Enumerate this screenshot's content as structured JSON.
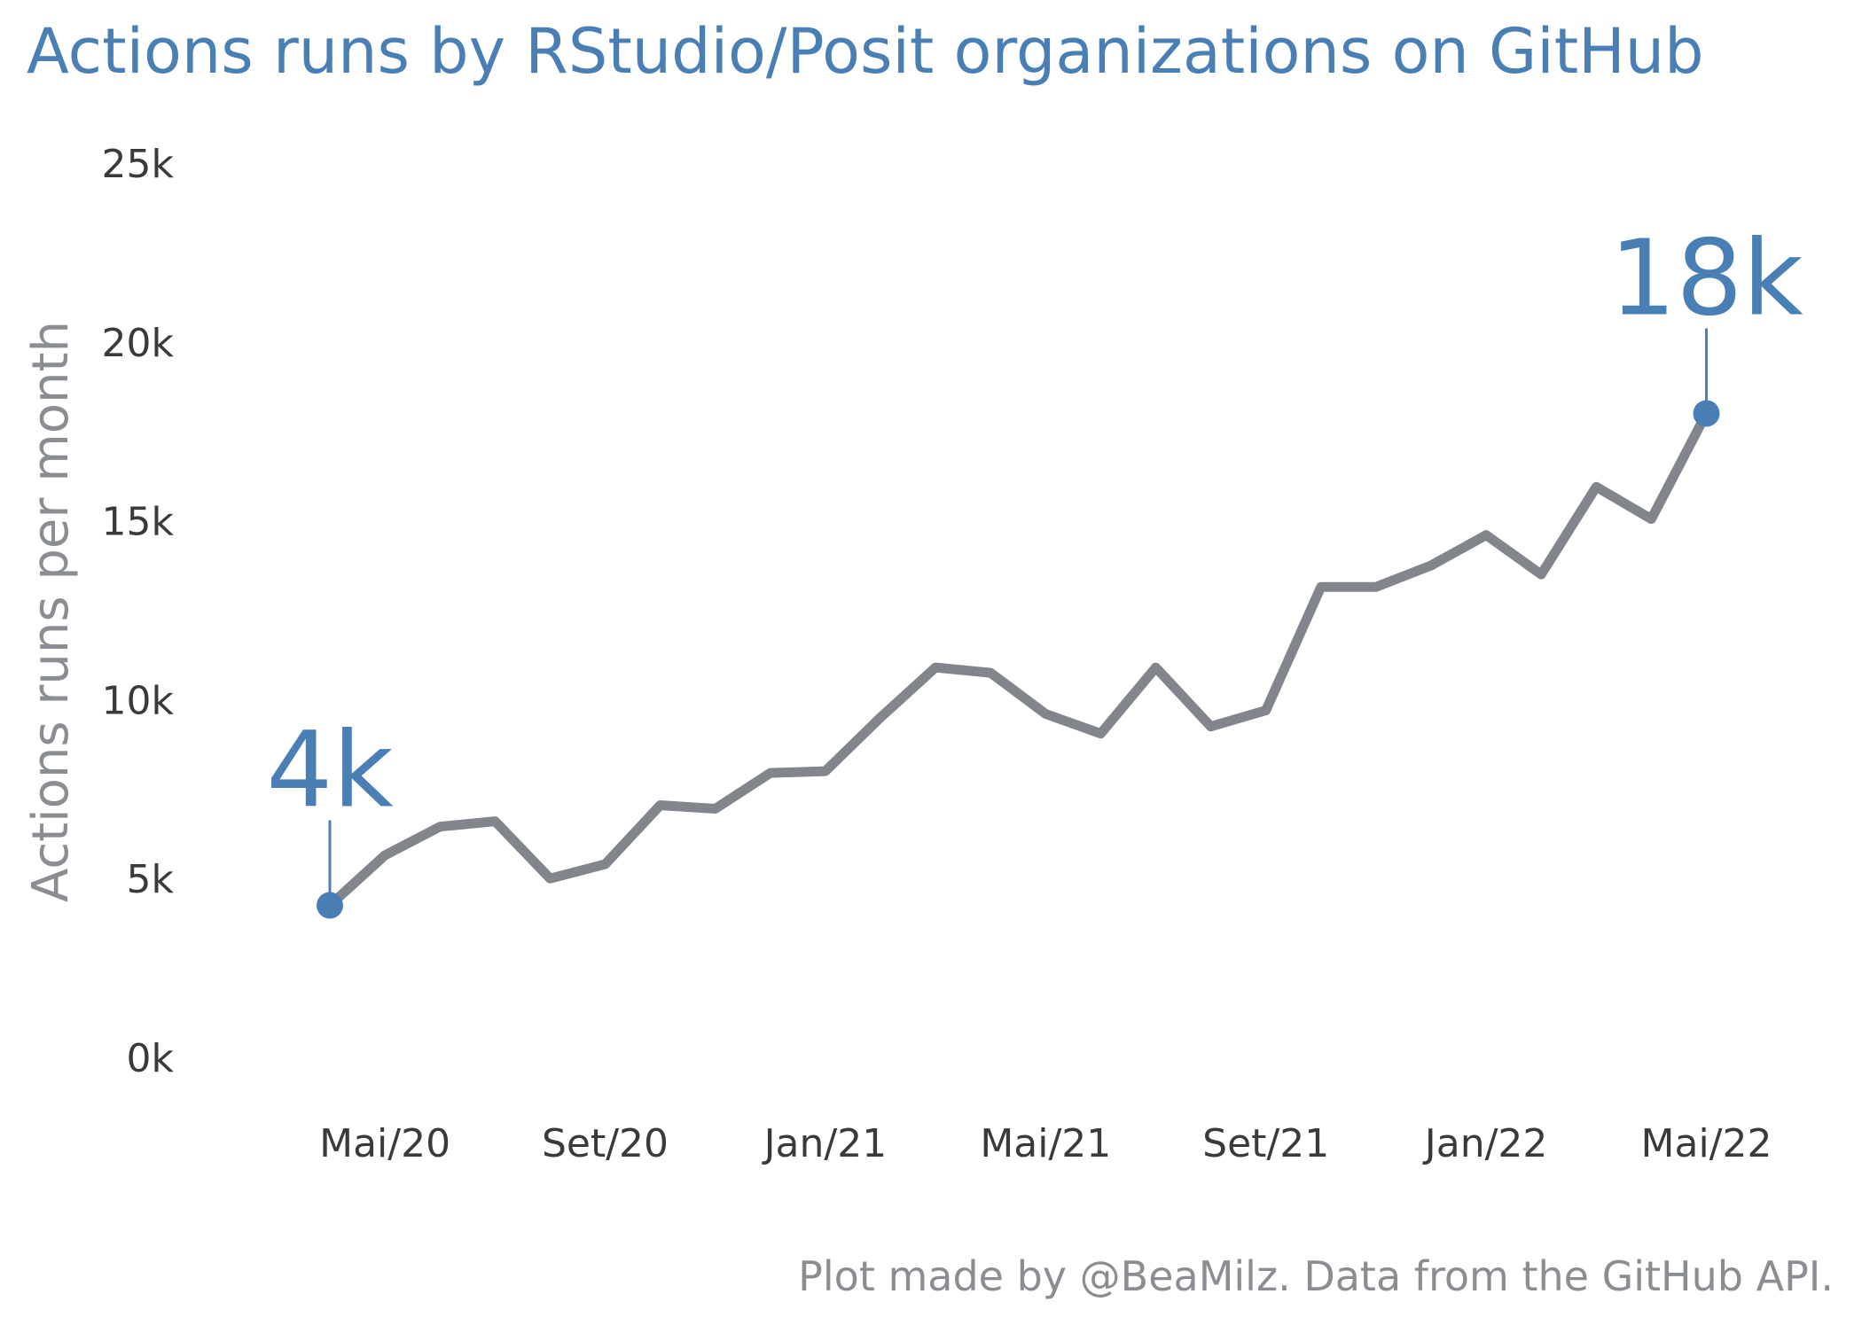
{
  "colors": {
    "accent": "#4a7fb5",
    "line": "#82868c",
    "muted_text": "#8a8d91",
    "tick_text": "#3a3a3a",
    "background": "#ffffff"
  },
  "chart_data": {
    "type": "line",
    "title": "Actions runs by RStudio/Posit organizations on GitHub",
    "xlabel": "",
    "ylabel": "Actions runs per month",
    "caption": "Plot made by @BeaMilz. Data from the GitHub API.",
    "ylim": [
      0,
      25000
    ],
    "y_ticks": [
      0,
      5000,
      10000,
      15000,
      20000,
      25000
    ],
    "y_tick_labels": [
      "0k",
      "5k",
      "10k",
      "15k",
      "20k",
      "25k"
    ],
    "x_ticks": [
      "2020-05",
      "2020-09",
      "2021-01",
      "2021-05",
      "2021-09",
      "2022-01",
      "2022-05"
    ],
    "x_tick_labels": [
      "Mai/20",
      "Set/20",
      "Jan/21",
      "Mai/21",
      "Set/21",
      "Jan/22",
      "Mai/22"
    ],
    "grid": false,
    "legend": "none",
    "series": [
      {
        "x": [
          "2020-04",
          "2020-05",
          "2020-06",
          "2020-07",
          "2020-08",
          "2020-09",
          "2020-10",
          "2020-11",
          "2020-12",
          "2021-01",
          "2021-02",
          "2021-03",
          "2021-04",
          "2021-05",
          "2021-06",
          "2021-07",
          "2021-08",
          "2021-09",
          "2021-10",
          "2021-11",
          "2021-12",
          "2022-01",
          "2022-02",
          "2022-03",
          "2022-04",
          "2022-05"
        ],
        "values": [
          4250,
          5650,
          6450,
          6600,
          5000,
          5400,
          7050,
          6950,
          7950,
          8000,
          9500,
          10900,
          10750,
          9600,
          9050,
          10900,
          9250,
          9700,
          13150,
          13150,
          13750,
          14600,
          13500,
          15950,
          15050,
          18000
        ]
      }
    ],
    "annotations": [
      {
        "x": "2020-04",
        "y": 4250,
        "label": "4k"
      },
      {
        "x": "2022-05",
        "y": 18000,
        "label": "18k"
      }
    ]
  }
}
